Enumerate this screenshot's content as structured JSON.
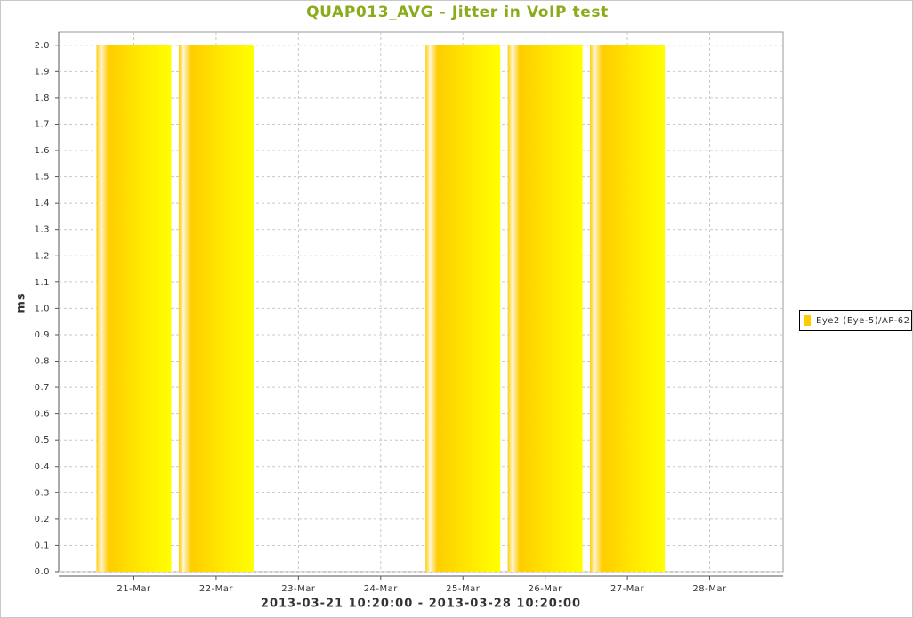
{
  "chart_data": {
    "type": "bar",
    "title": "QUAP013_AVG - Jitter in VoIP test",
    "x_label": "2013-03-21 10:20:00 - 2013-03-28 10:20:00",
    "y_label": "ms",
    "categories": [
      "21-Mar",
      "22-Mar",
      "23-Mar",
      "24-Mar",
      "25-Mar",
      "26-Mar",
      "27-Mar",
      "28-Mar"
    ],
    "series": [
      {
        "name": "Eye2 (Eye-5)/AP-62",
        "color": "#ffcc00",
        "values": [
          2.0,
          2.0,
          null,
          null,
          2.0,
          2.0,
          2.0,
          null
        ]
      }
    ],
    "ylim": [
      0,
      2.05
    ],
    "yticks": [
      {
        "value": 0,
        "label": "0.0"
      },
      0.1,
      0.2,
      0.3,
      0.4,
      0.5,
      0.6,
      0.7,
      0.8,
      0.9,
      {
        "value": 1,
        "label": "1.0"
      },
      1.1,
      1.2,
      1.3,
      1.4,
      1.5,
      1.6,
      1.7,
      1.8,
      1.9,
      {
        "value": 2,
        "label": "2.0"
      }
    ],
    "grid": true,
    "legend": "right"
  }
}
